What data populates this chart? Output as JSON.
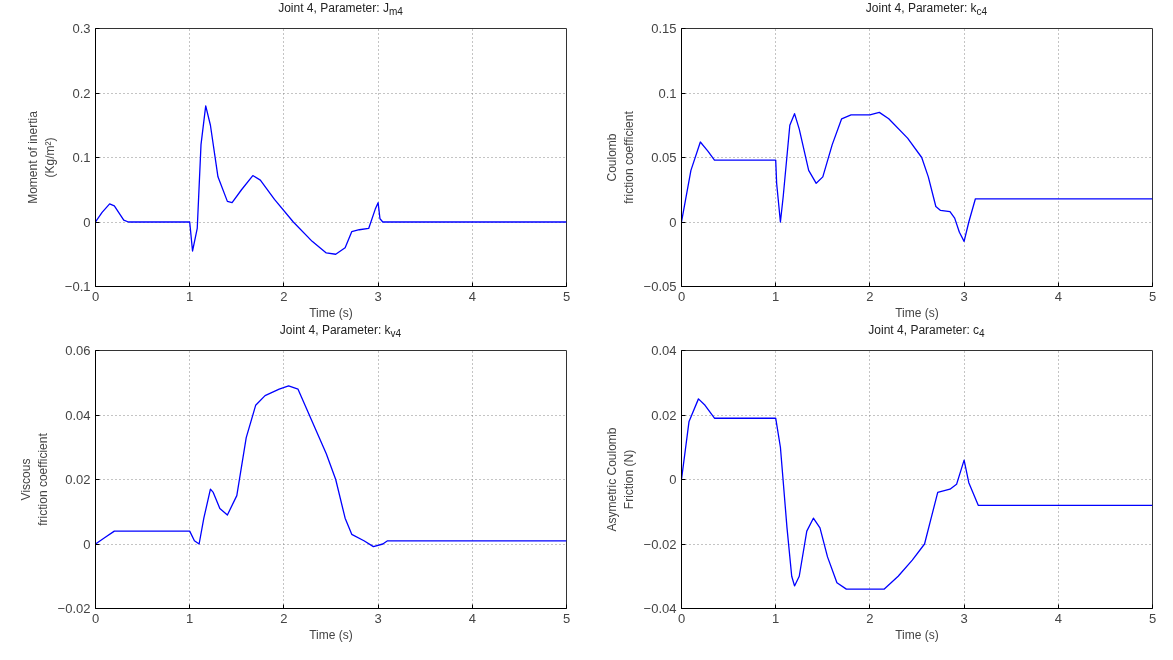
{
  "chart_data": [
    {
      "type": "line",
      "title": "Joint 4, Parameter: J$_{m4}$",
      "xlabel": "Time (s)",
      "ylabel": "Moment of inertia\n(Kg/m²)",
      "xlim": [
        0,
        5
      ],
      "ylim": [
        -0.1,
        0.3
      ],
      "xticks": [
        0,
        1,
        2,
        3,
        4,
        5
      ],
      "yticks": [
        -0.1,
        0,
        0.1,
        0.2,
        0.3
      ],
      "grid": true,
      "x": [
        0,
        0.07,
        0.15,
        0.2,
        0.3,
        0.35,
        1.0,
        1.03,
        1.08,
        1.12,
        1.17,
        1.22,
        1.3,
        1.4,
        1.45,
        1.55,
        1.67,
        1.75,
        1.9,
        2.1,
        2.3,
        2.45,
        2.55,
        2.65,
        2.72,
        2.8,
        2.9,
        2.97,
        3.0,
        3.02,
        3.05,
        5
      ],
      "series": [
        {
          "color": "#0000ff",
          "values": [
            0,
            0.015,
            0.028,
            0.025,
            0.003,
            0,
            0,
            -0.045,
            -0.01,
            0.12,
            0.18,
            0.15,
            0.07,
            0.032,
            0.03,
            0.05,
            0.072,
            0.065,
            0.035,
            0.0,
            -0.03,
            -0.048,
            -0.05,
            -0.04,
            -0.015,
            -0.012,
            -0.01,
            0.02,
            0.03,
            0.005,
            0,
            0
          ]
        }
      ]
    },
    {
      "type": "line",
      "title": "Joint 4, Parameter: k$_{c4}$",
      "xlabel": "Time (s)",
      "ylabel": "Coulomb\nfriction coefficient",
      "xlim": [
        0,
        5
      ],
      "ylim": [
        -0.05,
        0.15
      ],
      "xticks": [
        0,
        1,
        2,
        3,
        4,
        5
      ],
      "yticks": [
        -0.05,
        0,
        0.05,
        0.1,
        0.15
      ],
      "grid": true,
      "x": [
        0,
        0.1,
        0.2,
        0.28,
        0.35,
        1.0,
        1.01,
        1.05,
        1.08,
        1.15,
        1.2,
        1.25,
        1.35,
        1.43,
        1.5,
        1.6,
        1.7,
        1.8,
        2.0,
        2.1,
        2.2,
        2.4,
        2.55,
        2.62,
        2.7,
        2.75,
        2.85,
        2.9,
        2.95,
        3.0,
        3.05,
        3.12,
        5
      ],
      "series": [
        {
          "color": "#0000ff",
          "values": [
            0,
            0.04,
            0.062,
            0.055,
            0.048,
            0.048,
            0.03,
            0,
            0.02,
            0.075,
            0.084,
            0.072,
            0.04,
            0.03,
            0.035,
            0.06,
            0.08,
            0.083,
            0.083,
            0.085,
            0.08,
            0.065,
            0.05,
            0.035,
            0.012,
            0.009,
            0.008,
            0.003,
            -0.008,
            -0.015,
            0.0,
            0.018,
            0.018
          ]
        }
      ]
    },
    {
      "type": "line",
      "title": "Joint 4, Parameter: k$_{v4}$",
      "xlabel": "Time (s)",
      "ylabel": "Viscous\nfriction coefficient",
      "xlim": [
        0,
        5
      ],
      "ylim": [
        -0.02,
        0.06
      ],
      "xticks": [
        0,
        1,
        2,
        3,
        4,
        5
      ],
      "yticks": [
        -0.02,
        0,
        0.02,
        0.04,
        0.06
      ],
      "grid": true,
      "x": [
        0,
        0.1,
        0.2,
        1.0,
        1.05,
        1.1,
        1.15,
        1.22,
        1.25,
        1.32,
        1.4,
        1.5,
        1.6,
        1.7,
        1.8,
        1.95,
        2.05,
        2.15,
        2.3,
        2.45,
        2.55,
        2.65,
        2.72,
        2.85,
        2.95,
        3.05,
        3.1,
        5
      ],
      "series": [
        {
          "color": "#0000ff",
          "values": [
            0,
            0.002,
            0.004,
            0.004,
            0.001,
            0,
            0.008,
            0.017,
            0.016,
            0.011,
            0.009,
            0.015,
            0.033,
            0.043,
            0.046,
            0.048,
            0.049,
            0.048,
            0.038,
            0.028,
            0.02,
            0.008,
            0.003,
            0.001,
            -0.0008,
            0,
            0.001,
            0.001
          ]
        }
      ]
    },
    {
      "type": "line",
      "title": "Joint 4, Parameter: c$_{4}$",
      "xlabel": "Time (s)",
      "ylabel": "Asymetric Coulomb\nFriction (N)",
      "xlim": [
        0,
        5
      ],
      "ylim": [
        -0.04,
        0.04
      ],
      "xticks": [
        0,
        1,
        2,
        3,
        4,
        5
      ],
      "yticks": [
        -0.04,
        -0.02,
        0,
        0.02,
        0.04
      ],
      "grid": true,
      "x": [
        0,
        0.08,
        0.18,
        0.25,
        0.35,
        1.0,
        1.05,
        1.12,
        1.17,
        1.2,
        1.25,
        1.33,
        1.4,
        1.47,
        1.55,
        1.65,
        1.75,
        2.0,
        2.15,
        2.3,
        2.45,
        2.58,
        2.65,
        2.72,
        2.85,
        2.92,
        3.0,
        3.05,
        3.15,
        5
      ],
      "series": [
        {
          "color": "#0000ff",
          "values": [
            0,
            0.018,
            0.025,
            0.023,
            0.019,
            0.019,
            0.01,
            -0.015,
            -0.03,
            -0.033,
            -0.03,
            -0.016,
            -0.012,
            -0.015,
            -0.024,
            -0.032,
            -0.034,
            -0.034,
            -0.034,
            -0.03,
            -0.025,
            -0.02,
            -0.012,
            -0.004,
            -0.003,
            -0.0015,
            0.006,
            -0.001,
            -0.008,
            -0.008
          ]
        }
      ]
    }
  ]
}
